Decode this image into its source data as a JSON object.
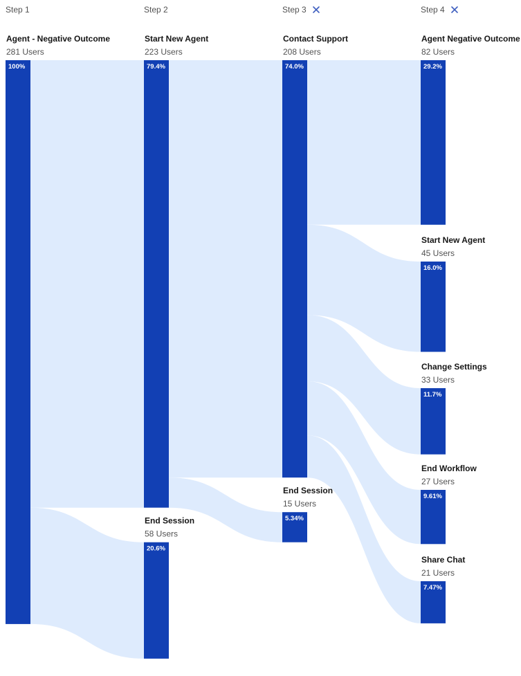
{
  "colors": {
    "node": "#1240b4",
    "flow": "#deebfd",
    "remove_icon": "#3f5fbf",
    "step_text": "#525252",
    "label_text": "#161616"
  },
  "steps": [
    {
      "label": "Step 1",
      "removable": false,
      "icon": null
    },
    {
      "label": "Step 2",
      "removable": false,
      "icon": null
    },
    {
      "label": "Step 3",
      "removable": true,
      "icon": "close-icon"
    },
    {
      "label": "Step 4",
      "removable": true,
      "icon": "close-icon"
    }
  ],
  "chart_data": {
    "type": "sankey",
    "unit": "Users",
    "total_users": 281,
    "nodes": [
      {
        "id": "s1_neg",
        "step": 1,
        "name": "Agent - Negative Outcome",
        "users": 281,
        "users_label": "281 Users",
        "percent": "100%"
      },
      {
        "id": "s2_new",
        "step": 2,
        "name": "Start New Agent",
        "users": 223,
        "users_label": "223 Users",
        "percent": "79.4%"
      },
      {
        "id": "s2_end",
        "step": 2,
        "name": "End Session",
        "users": 58,
        "users_label": "58 Users",
        "percent": "20.6%"
      },
      {
        "id": "s3_support",
        "step": 3,
        "name": "Contact Support",
        "users": 208,
        "users_label": "208 Users",
        "percent": "74.0%"
      },
      {
        "id": "s3_end",
        "step": 3,
        "name": "End Session",
        "users": 15,
        "users_label": "15 Users",
        "percent": "5.34%"
      },
      {
        "id": "s4_neg",
        "step": 4,
        "name": "Agent Negative Outcome",
        "users": 82,
        "users_label": "82 Users",
        "percent": "29.2%"
      },
      {
        "id": "s4_new",
        "step": 4,
        "name": "Start New Agent",
        "users": 45,
        "users_label": "45 Users",
        "percent": "16.0%"
      },
      {
        "id": "s4_settings",
        "step": 4,
        "name": "Change Settings",
        "users": 33,
        "users_label": "33 Users",
        "percent": "11.7%"
      },
      {
        "id": "s4_workflow",
        "step": 4,
        "name": "End Workflow",
        "users": 27,
        "users_label": "27 Users",
        "percent": "9.61%"
      },
      {
        "id": "s4_share",
        "step": 4,
        "name": "Share Chat",
        "users": 21,
        "users_label": "21 Users",
        "percent": "7.47%"
      }
    ],
    "links": [
      {
        "source": "s1_neg",
        "target": "s2_new",
        "value": 223
      },
      {
        "source": "s1_neg",
        "target": "s2_end",
        "value": 58
      },
      {
        "source": "s2_new",
        "target": "s3_support",
        "value": 208
      },
      {
        "source": "s2_new",
        "target": "s3_end",
        "value": 15
      },
      {
        "source": "s3_support",
        "target": "s4_neg",
        "value": 82
      },
      {
        "source": "s3_support",
        "target": "s4_new",
        "value": 45
      },
      {
        "source": "s3_support",
        "target": "s4_settings",
        "value": 33
      },
      {
        "source": "s3_support",
        "target": "s4_workflow",
        "value": 27
      },
      {
        "source": "s3_support",
        "target": "s4_share",
        "value": 21
      }
    ]
  }
}
